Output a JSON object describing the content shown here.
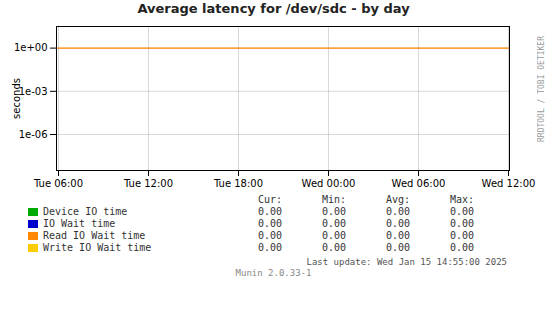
{
  "chart_data": {
    "type": "line",
    "title": "Average latency for /dev/sdc - by day",
    "ylabel": "seconds",
    "categories": [
      "Tue 06:00",
      "Tue 12:00",
      "Tue 18:00",
      "Wed 00:00",
      "Wed 06:00",
      "Wed 12:00"
    ],
    "log": "y",
    "grid": true,
    "ylim": [
      3.1622776601683795e-09,
      31.622776601683793
    ],
    "yticks": [
      {
        "value": 1e-06,
        "label": "1e-06"
      },
      {
        "value": 0.001,
        "label": "1e-03"
      },
      {
        "value": 1.0,
        "label": "1e+00"
      }
    ],
    "hline": {
      "value": 1.0,
      "color": "#ff8800"
    },
    "legend_columns": [
      "Cur:",
      "Min:",
      "Avg:",
      "Max:"
    ],
    "series": [
      {
        "name": "Device IO time",
        "color": "#00aa00",
        "values": [
          null,
          null,
          null,
          null,
          null,
          null
        ],
        "stats": [
          {
            "value": 0,
            "label": "0.00"
          },
          {
            "value": 0,
            "label": "0.00"
          },
          {
            "value": 0,
            "label": "0.00"
          },
          {
            "value": 0,
            "label": "0.00"
          }
        ]
      },
      {
        "name": "IO Wait time",
        "color": "#0000cc",
        "values": [
          null,
          null,
          null,
          null,
          null,
          null
        ],
        "stats": [
          {
            "value": 0,
            "label": "0.00"
          },
          {
            "value": 0,
            "label": "0.00"
          },
          {
            "value": 0,
            "label": "0.00"
          },
          {
            "value": 0,
            "label": "0.00"
          }
        ]
      },
      {
        "name": "Read IO Wait time",
        "color": "#ff8800",
        "values": [
          null,
          null,
          null,
          null,
          null,
          null
        ],
        "stats": [
          {
            "value": 0,
            "label": "0.00"
          },
          {
            "value": 0,
            "label": "0.00"
          },
          {
            "value": 0,
            "label": "0.00"
          },
          {
            "value": 0,
            "label": "0.00"
          }
        ]
      },
      {
        "name": "Write IO Wait time",
        "color": "#ffcc00",
        "values": [
          null,
          null,
          null,
          null,
          null,
          null
        ],
        "stats": [
          {
            "value": 0,
            "label": "0.00"
          },
          {
            "value": 0,
            "label": "0.00"
          },
          {
            "value": 0,
            "label": "0.00"
          },
          {
            "value": 0,
            "label": "0.00"
          }
        ]
      }
    ],
    "annotations": [
      "Last update: Wed Jan 15 14:55:00 2025",
      "Munin 2.0.33-1",
      "RRDTOOL / TOBI OETIKER"
    ]
  }
}
